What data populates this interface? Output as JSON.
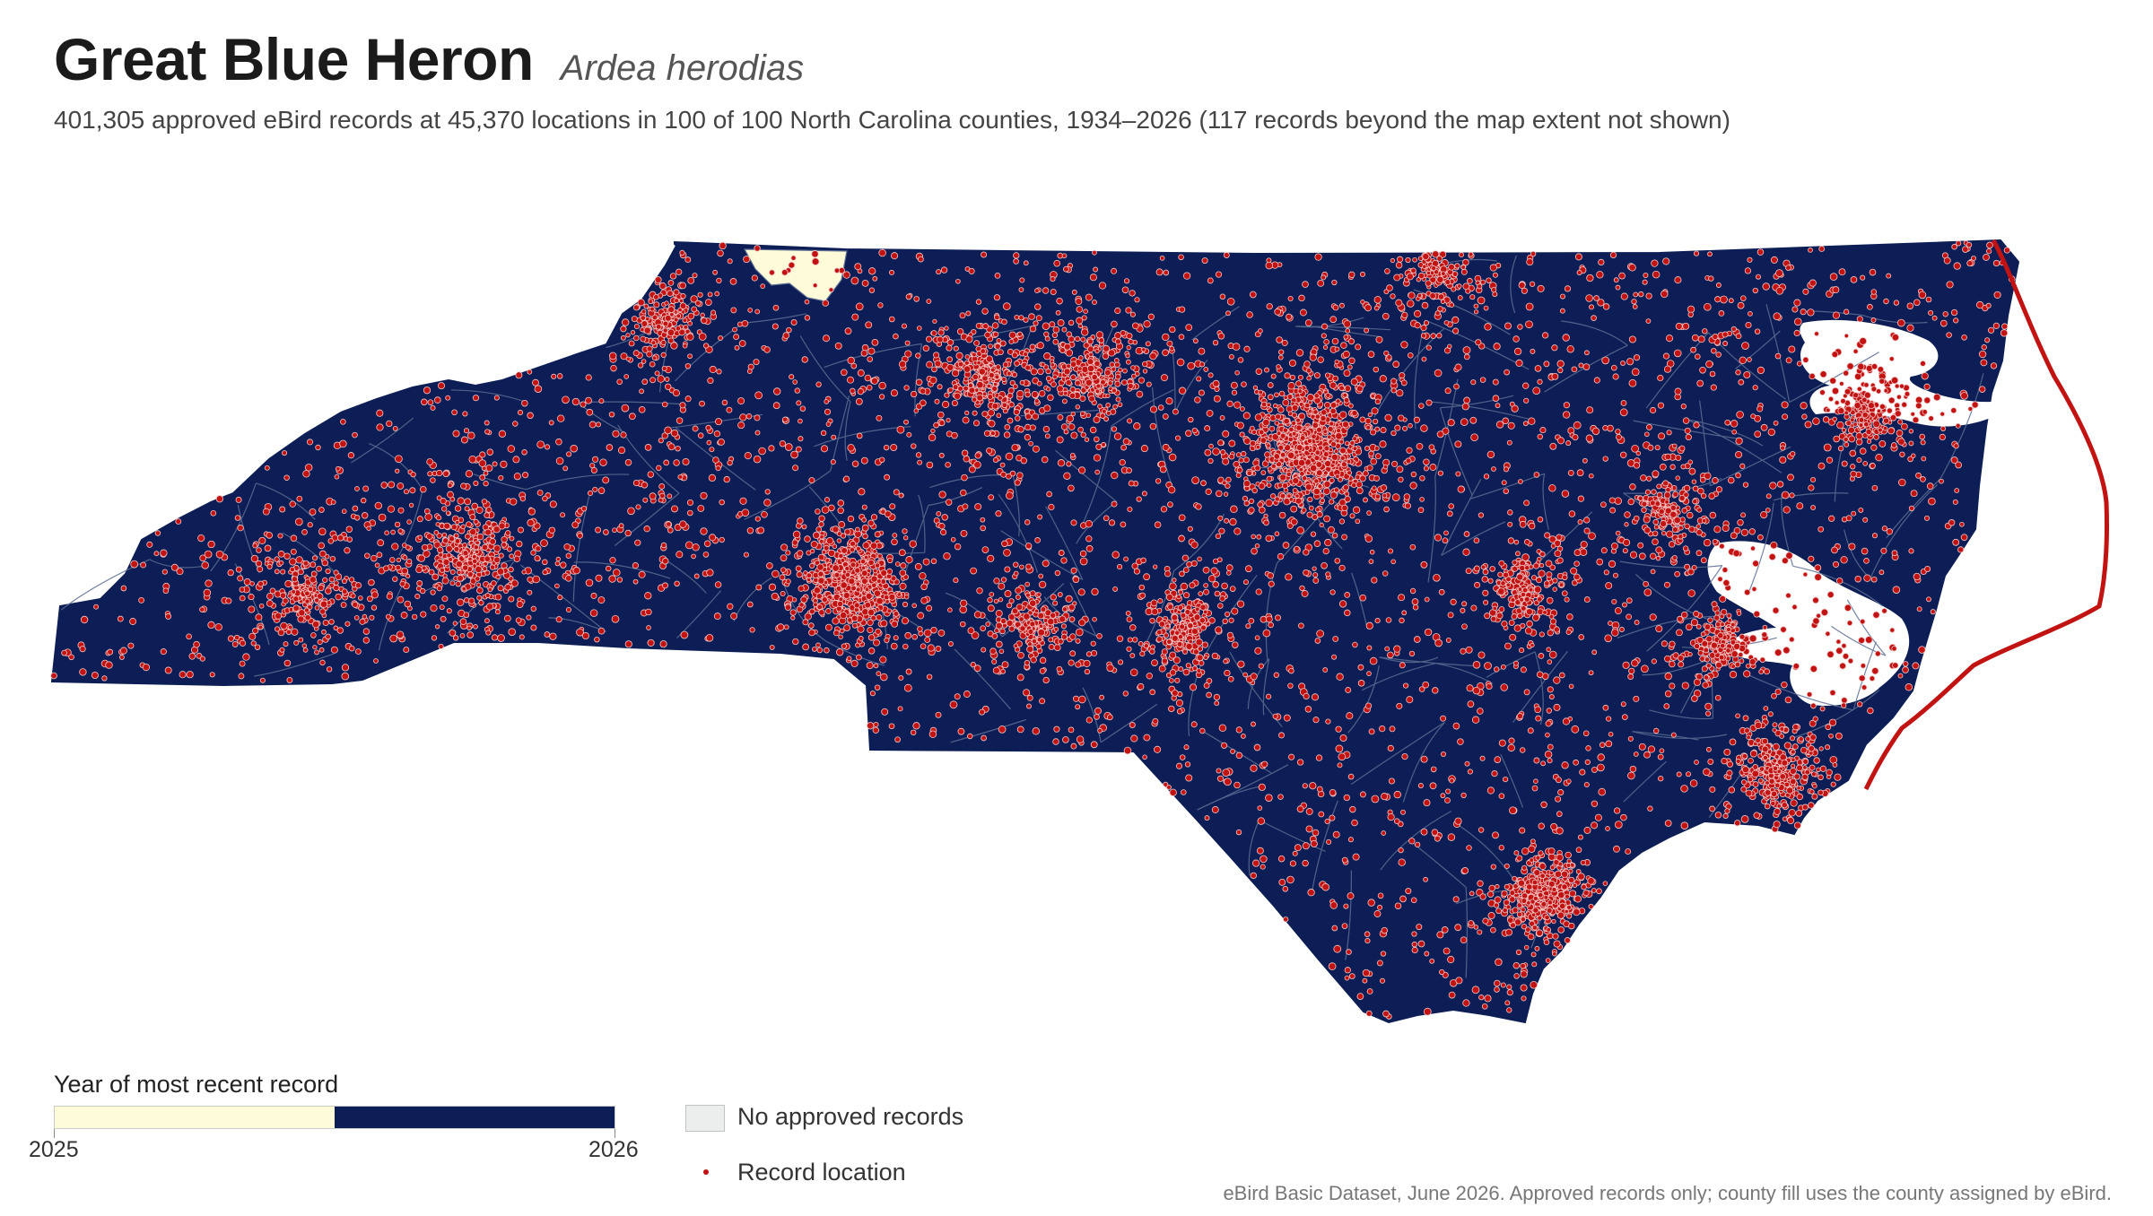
{
  "header": {
    "title": "Great Blue Heron",
    "scientific_name": "Ardea herodias",
    "subtitle": "401,305 approved eBird records at 45,370 locations in 100 of 100 North Carolina counties, 1934–2026 (117 records beyond the map extent not shown)"
  },
  "map": {
    "region": "North Carolina",
    "fill_recent_color": "#0c1e55",
    "fill_old_color": "#fdfbd8",
    "county_line_color": "#5d6e93",
    "record_dot_color": "#c21313",
    "record_dot_outline": "#f4c6c6"
  },
  "legend": {
    "title": "Year of most recent record",
    "scale_colors": [
      "#fdfbd8",
      "#0c1e55"
    ],
    "scale_min_label": "2025",
    "scale_max_label": "2026",
    "no_records_label": "No approved records",
    "no_records_color": "#eceeed",
    "record_location_label": "Record location"
  },
  "credit": "eBird Basic Dataset, June 2026. Approved records only; county fill uses the county assigned by eBird."
}
